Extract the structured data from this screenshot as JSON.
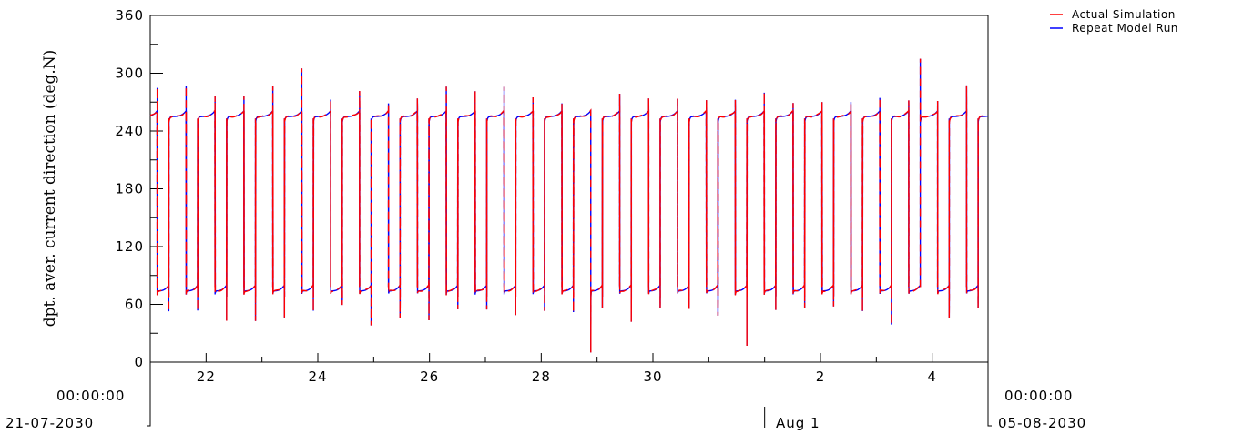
{
  "chart_data": {
    "type": "line",
    "ylabel": "dpt. aver. current direction (deg.N)",
    "ylim": [
      0,
      360
    ],
    "yticks": [
      "0",
      "60",
      "120",
      "180",
      "240",
      "300",
      "360"
    ],
    "xlim": [
      "21-07-2030 00:00:00",
      "05-08-2030 00:00:00"
    ],
    "x_start": {
      "time": "00:00:00",
      "date": "21-07-2030"
    },
    "x_end": {
      "time": "00:00:00",
      "date": "05-08-2030"
    },
    "xticks": [
      {
        "date": "2030-07-22",
        "label": "22"
      },
      {
        "date": "2030-07-24",
        "label": "24"
      },
      {
        "date": "2030-07-26",
        "label": "26"
      },
      {
        "date": "2030-07-28",
        "label": "28"
      },
      {
        "date": "2030-07-30",
        "label": "30"
      },
      {
        "date": "2030-08-02",
        "label": "2"
      },
      {
        "date": "2030-08-04",
        "label": "4"
      }
    ],
    "month_marker": {
      "date": "2030-08-01",
      "label": "Aug 1"
    },
    "grid": false,
    "legend_position": "top-right",
    "series": [
      {
        "name": "Actual Simulation",
        "color": "#ff0000",
        "dash": "8,5"
      },
      {
        "name": "Repeat Model Run",
        "color": "#0000ff",
        "dash": "none"
      }
    ],
    "pattern": {
      "description_values": "Semi-diurnal alternation between ~75 deg.N (flood) and ~255 deg.N (ebb)",
      "low_level": 74,
      "high_level": 255,
      "period_hours": 12.42,
      "first_rise": "2030-07-21 03:00",
      "flood_fraction": 0.4
    },
    "extremes": [
      {
        "date": "2030-07-23 17:40",
        "value": 305
      },
      {
        "date": "2030-07-28 19:00",
        "value": 10
      },
      {
        "date": "2030-07-31 15:00",
        "value": 17
      },
      {
        "date": "2030-08-03 22:00",
        "value": 315
      }
    ]
  }
}
